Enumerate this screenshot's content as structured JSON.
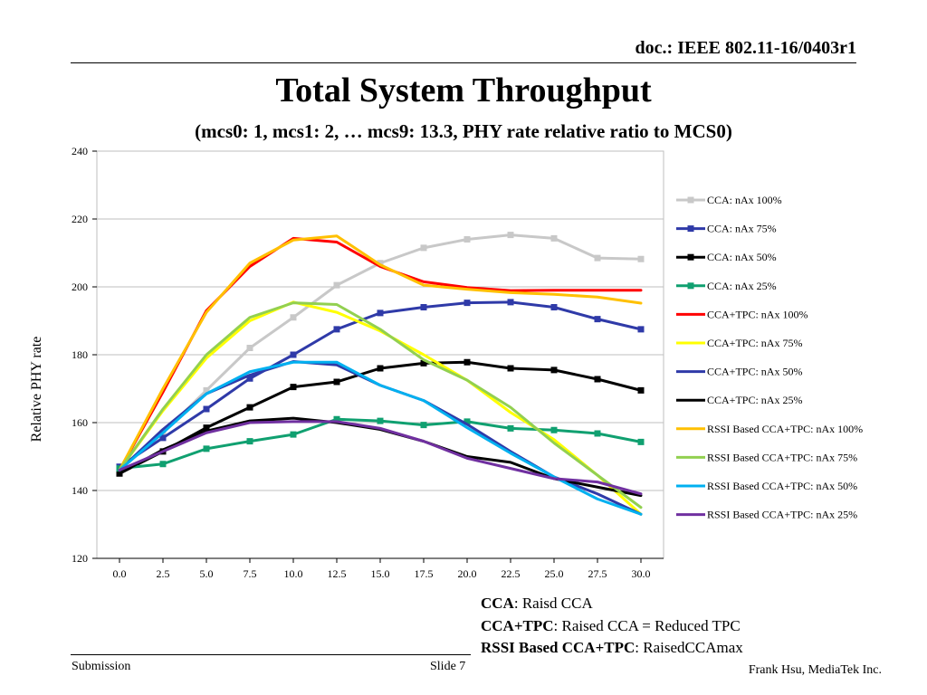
{
  "header": {
    "doc_id": "doc.: IEEE 802.11-16/0403r1",
    "title": "Total System Throughput",
    "subtitle": "(mcs0: 1, mcs1: 2, … mcs9: 13.3, PHY rate relative ratio to MCS0)"
  },
  "chart_data": {
    "type": "line",
    "title": "",
    "xlabel": "",
    "ylabel": "Relative PHY rate",
    "x": [
      0,
      2.5,
      5,
      7.5,
      10,
      12.5,
      15,
      17.5,
      20,
      22.5,
      25,
      27.5,
      30
    ],
    "x_tick_labels": [
      "0.0",
      "2.5",
      "5.0",
      "7.5",
      "10.0",
      "12.5",
      "15.0",
      "17.5",
      "20.0",
      "22.5",
      "25.0",
      "27.5",
      "30.0"
    ],
    "y_tick_labels": [
      "240",
      "220",
      "200",
      "180",
      "160",
      "140",
      "120"
    ],
    "xlim": [
      0,
      30
    ],
    "ylim": [
      120,
      240
    ],
    "grid": true,
    "legend_position": "right",
    "series": [
      {
        "name": "CCA: nAx 100%",
        "color": "#c8c8c8",
        "marker": "square",
        "values": [
          146,
          157,
          169.5,
          182,
          191,
          200.5,
          207,
          211.5,
          214,
          215.3,
          214.3,
          208.5,
          208.2
        ]
      },
      {
        "name": "CCA: nAx 75%",
        "color": "#2f3aa8",
        "marker": "square",
        "values": [
          147,
          155.5,
          164,
          173,
          180,
          187.5,
          192.3,
          194,
          195.3,
          195.5,
          194,
          190.5,
          187.5
        ]
      },
      {
        "name": "CCA: nAx 50%",
        "color": "#000000",
        "marker": "square",
        "values": [
          145,
          151.5,
          158.5,
          164.5,
          170.5,
          172,
          176,
          177.5,
          177.8,
          176,
          175.5,
          172.8,
          169.5
        ]
      },
      {
        "name": "CCA: nAx 25%",
        "color": "#10a070",
        "marker": "square",
        "values": [
          146.5,
          147.8,
          152.3,
          154.5,
          156.5,
          161,
          160.5,
          159.3,
          160.3,
          158.3,
          157.8,
          156.8,
          154.3
        ]
      },
      {
        "name": "CCA+TPC: nAx 100%",
        "color": "#ff0000",
        "marker": "none",
        "values": [
          146,
          169,
          193,
          206,
          214.3,
          213.2,
          206,
          201.5,
          199.8,
          198.9,
          199,
          199,
          199
        ]
      },
      {
        "name": "CCA+TPC: nAx 75%",
        "color": "#ffff00",
        "marker": "none",
        "values": [
          146,
          163.5,
          179,
          190,
          195.5,
          192.5,
          187,
          180,
          172.5,
          163,
          155,
          144.5,
          133
        ]
      },
      {
        "name": "CCA+TPC: nAx 50%",
        "color": "#2f3aa8",
        "marker": "none",
        "values": [
          146,
          158,
          168.5,
          174,
          178,
          177,
          171,
          166.5,
          159.5,
          151.5,
          144,
          139,
          133
        ]
      },
      {
        "name": "CCA+TPC: nAx 25%",
        "color": "#000000",
        "marker": "none",
        "values": [
          145,
          152,
          157.5,
          160.5,
          161.3,
          160,
          158,
          154.5,
          150,
          148.3,
          143.5,
          141,
          138.5
        ]
      },
      {
        "name": "RSSI Based CCA+TPC: nAx 100%",
        "color": "#ffc000",
        "marker": "none",
        "values": [
          146,
          170,
          192.5,
          207,
          213.8,
          215,
          206.5,
          200.5,
          199.3,
          198.3,
          197.8,
          197,
          195.2
        ]
      },
      {
        "name": "RSSI Based CCA+TPC: nAx 75%",
        "color": "#92d050",
        "marker": "none",
        "values": [
          146,
          164,
          180,
          191,
          195.3,
          194.8,
          187.5,
          178.5,
          172.5,
          164.5,
          154,
          144.5,
          135
        ]
      },
      {
        "name": "RSSI Based CCA+TPC: nAx 50%",
        "color": "#00b0f0",
        "marker": "none",
        "values": [
          146,
          157,
          168.5,
          175,
          177.8,
          177.8,
          171,
          166.5,
          158.5,
          151,
          144,
          137.5,
          133
        ]
      },
      {
        "name": "RSSI Based CCA+TPC: nAx 25%",
        "color": "#7030a0",
        "marker": "none",
        "values": [
          146,
          151.5,
          157,
          160,
          160.3,
          160.3,
          158.3,
          154.5,
          149.5,
          146.5,
          143.5,
          142.5,
          139
        ]
      }
    ]
  },
  "notes": [
    {
      "bold": "CCA",
      "text": ": Raisd CCA"
    },
    {
      "bold": "CCA+TPC",
      "text": ": Raised CCA = Reduced TPC"
    },
    {
      "bold": "RSSI Based CCA+TPC",
      "text": ": RaisedCCAmax"
    }
  ],
  "footer": {
    "left": "Submission",
    "middle": "Slide 7",
    "right": "Frank Hsu, MediaTek Inc."
  }
}
